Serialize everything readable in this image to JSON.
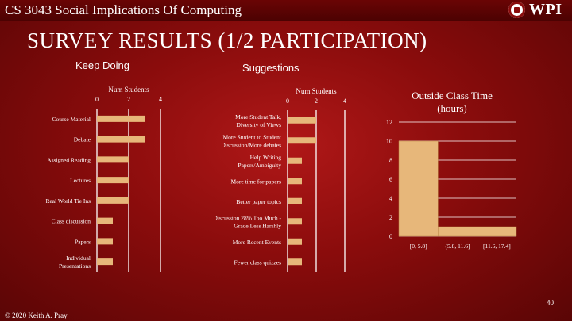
{
  "header": {
    "course_title": "CS 3043 Social Implications Of Computing",
    "logo_text": "WPI"
  },
  "slide": {
    "title": "SURVEY RESULTS (1/2 PARTICIPATION)",
    "section_keep": "Keep Doing",
    "section_suggestions": "Suggestions",
    "page_number": "40",
    "copyright": "© 2020 Keith A. Pray"
  },
  "colors": {
    "bar": "#e7b77a",
    "grid": "#ffffff"
  },
  "chart_data": [
    {
      "type": "bar",
      "orientation": "horizontal",
      "title": "Keep Doing",
      "xlabel": "Num Students",
      "xlim": [
        0,
        4
      ],
      "ticks": [
        "0",
        "2",
        "4"
      ],
      "categories": [
        [
          "Course Material"
        ],
        [
          "Debate"
        ],
        [
          "Assigned Reading"
        ],
        [
          "Lectures"
        ],
        [
          "Real World Tie Ins"
        ],
        [
          "Class discussion"
        ],
        [
          "Papers"
        ],
        [
          "Individual",
          "Presentations"
        ]
      ],
      "values": [
        3,
        3,
        2,
        2,
        2,
        1,
        1,
        1
      ]
    },
    {
      "type": "bar",
      "orientation": "horizontal",
      "title": "Suggestions",
      "xlabel": "Num Students",
      "xlim": [
        0,
        4
      ],
      "ticks": [
        "0",
        "2",
        "4"
      ],
      "categories": [
        [
          "More Student Talk,",
          "Diversity of Views"
        ],
        [
          "More Student to Student",
          "Discussion/More debates"
        ],
        [
          "Help Writing",
          "Papers/Ambiguity"
        ],
        [
          "More time for papers"
        ],
        [
          "Better paper topics"
        ],
        [
          "Discussion 28% Too Much -",
          "Grade Less Harshly"
        ],
        [
          "More Recent Events"
        ],
        [
          "Fewer class quizzes"
        ]
      ],
      "values": [
        2,
        2,
        1,
        1,
        1,
        1,
        1,
        1
      ]
    },
    {
      "type": "bar",
      "orientation": "vertical",
      "title": [
        "Outside Class Time",
        "(hours)"
      ],
      "categories": [
        "[0, 5.8]",
        "(5.8, 11.6]",
        "[11.6, 17.4]"
      ],
      "values": [
        10,
        1,
        1
      ],
      "ylim": [
        0,
        12
      ],
      "yticks": [
        "0",
        "2",
        "4",
        "6",
        "8",
        "10",
        "12"
      ]
    }
  ]
}
